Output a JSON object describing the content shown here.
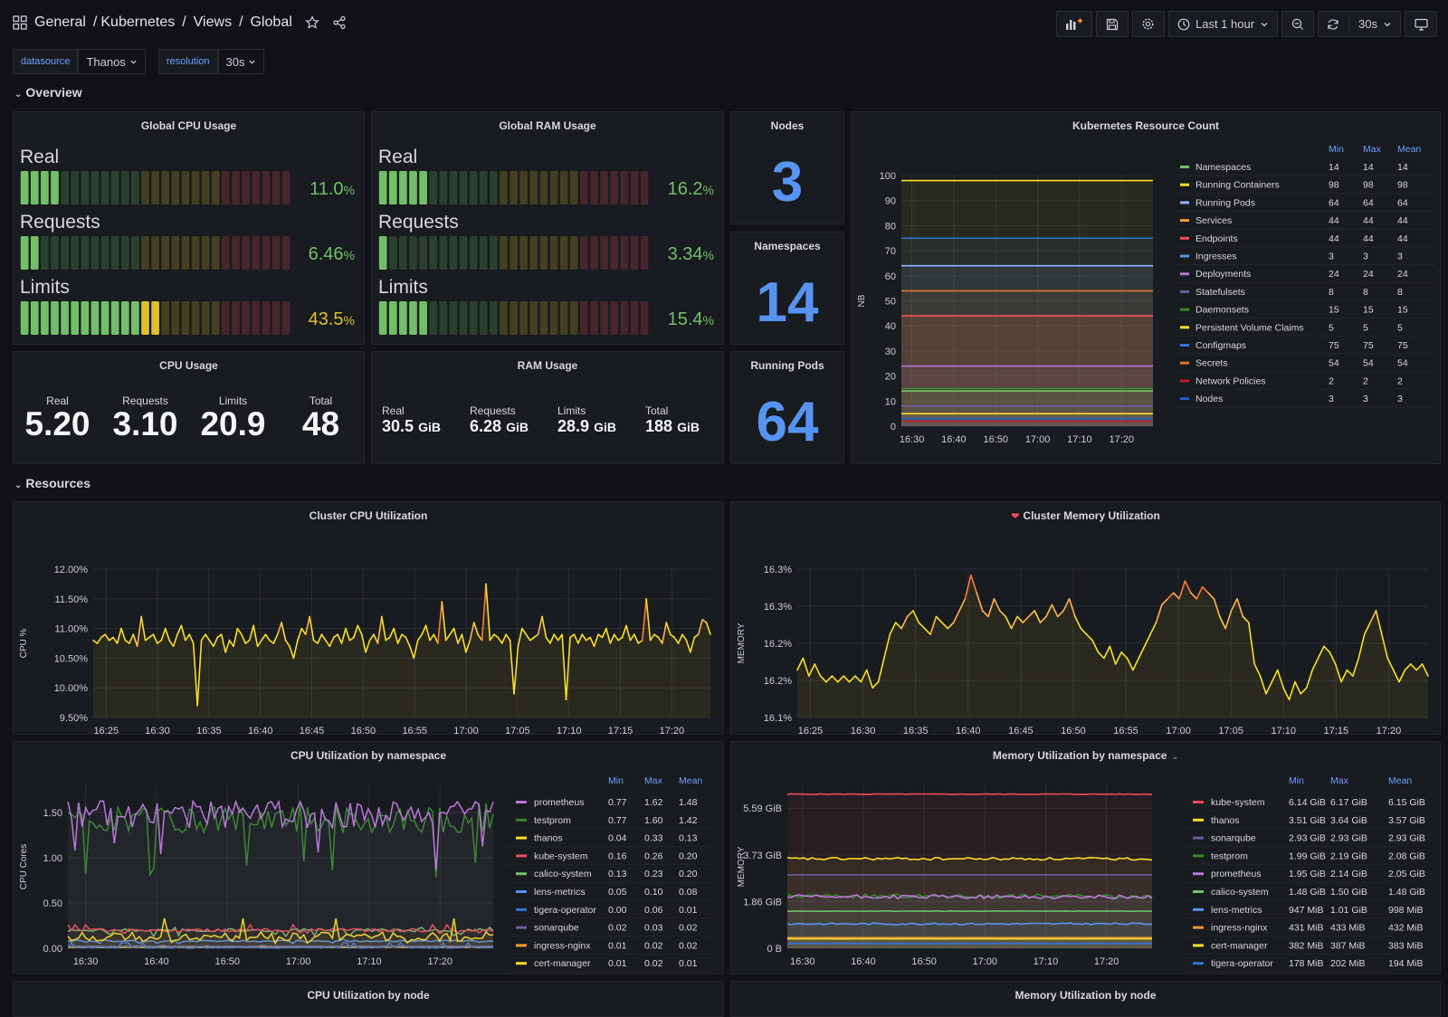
{
  "breadcrumb": {
    "root": "General",
    "sep1": "/",
    "folder": "Kubernetes",
    "sep2": "/",
    "sub": "Views",
    "sep3": "/",
    "page": "Global"
  },
  "toolbar": {
    "time_range": "Last 1 hour",
    "refresh": "30s"
  },
  "variables": [
    {
      "label": "datasource",
      "value": "Thanos"
    },
    {
      "label": "resolution",
      "value": "30s"
    }
  ],
  "rows": {
    "overview": "Overview",
    "resources": "Resources"
  },
  "colors": {
    "blue": "#5794f2",
    "green": "#73bf69",
    "yellow": "#fade2a",
    "orange": "#ff9830",
    "red": "#f2495c",
    "purple": "#b877d9"
  },
  "global_cpu": {
    "title": "Global CPU Usage",
    "rows": [
      {
        "label": "Real",
        "num": "11.0",
        "unit": "%",
        "fraction": 0.11,
        "color": "#73bf69"
      },
      {
        "label": "Requests",
        "num": "6.46",
        "unit": "%",
        "fraction": 0.0646,
        "color": "#73bf69"
      },
      {
        "label": "Limits",
        "num": "43.5",
        "unit": "%",
        "fraction": 0.435,
        "color": "#e0c02a"
      }
    ]
  },
  "global_ram": {
    "title": "Global RAM Usage",
    "rows": [
      {
        "label": "Real",
        "num": "16.2",
        "unit": "%",
        "fraction": 0.162,
        "color": "#73bf69"
      },
      {
        "label": "Requests",
        "num": "3.34",
        "unit": "%",
        "fraction": 0.0334,
        "color": "#73bf69"
      },
      {
        "label": "Limits",
        "num": "15.4",
        "unit": "%",
        "fraction": 0.154,
        "color": "#73bf69"
      }
    ]
  },
  "nodes": {
    "title": "Nodes",
    "value": "3"
  },
  "namespaces": {
    "title": "Namespaces",
    "value": "14"
  },
  "running_pods": {
    "title": "Running Pods",
    "value": "64"
  },
  "cpu_usage": {
    "title": "CPU Usage",
    "cells": [
      {
        "label": "Real",
        "value": "5.20"
      },
      {
        "label": "Requests",
        "value": "3.10"
      },
      {
        "label": "Limits",
        "value": "20.9"
      },
      {
        "label": "Total",
        "value": "48"
      }
    ]
  },
  "ram_usage": {
    "title": "RAM Usage",
    "cells": [
      {
        "label": "Real",
        "value": "30.5",
        "unit": "GiB"
      },
      {
        "label": "Requests",
        "value": "6.28",
        "unit": "GiB"
      },
      {
        "label": "Limits",
        "value": "28.9",
        "unit": "GiB"
      },
      {
        "label": "Total",
        "value": "188",
        "unit": "GiB"
      }
    ]
  },
  "panels": {
    "k8s_count_title": "Kubernetes Resource Count",
    "cluster_cpu_title": "Cluster CPU Utilization",
    "cluster_mem_title": "Cluster Memory Utilization",
    "cpu_ns_title": "CPU Utilization by namespace",
    "mem_ns_title": "Memory Utilization by namespace",
    "cpu_node_title": "CPU Utilization by node",
    "mem_node_title": "Memory Utilization by node"
  },
  "legend_headers": {
    "min": "Min",
    "max": "Max",
    "mean": "Mean"
  },
  "chart_data": [
    {
      "type": "line",
      "title": "Kubernetes Resource Count",
      "ylabel": "NB",
      "ylim": [
        0,
        100
      ],
      "yticks": [
        "0",
        "10",
        "20",
        "30",
        "40",
        "50",
        "60",
        "70",
        "80",
        "90",
        "100"
      ],
      "xticks": [
        "16:30",
        "16:40",
        "16:50",
        "17:00",
        "17:10",
        "17:20"
      ],
      "series": [
        {
          "name": "Namespaces",
          "value": 14,
          "min": "14",
          "max": "14",
          "mean": "14",
          "color": "#73bf69"
        },
        {
          "name": "Running Containers",
          "value": 98,
          "min": "98",
          "max": "98",
          "mean": "98",
          "color": "#fade2a"
        },
        {
          "name": "Running Pods",
          "value": 64,
          "min": "64",
          "max": "64",
          "mean": "64",
          "color": "#8ab8ff"
        },
        {
          "name": "Services",
          "value": 44,
          "min": "44",
          "max": "44",
          "mean": "44",
          "color": "#ff9830"
        },
        {
          "name": "Endpoints",
          "value": 44,
          "min": "44",
          "max": "44",
          "mean": "44",
          "color": "#f2495c"
        },
        {
          "name": "Ingresses",
          "value": 3,
          "min": "3",
          "max": "3",
          "mean": "3",
          "color": "#5794f2"
        },
        {
          "name": "Deployments",
          "value": 24,
          "min": "24",
          "max": "24",
          "mean": "24",
          "color": "#b877d9"
        },
        {
          "name": "Statefulsets",
          "value": 8,
          "min": "8",
          "max": "8",
          "mean": "8",
          "color": "#705da0"
        },
        {
          "name": "Daemonsets",
          "value": 15,
          "min": "15",
          "max": "15",
          "mean": "15",
          "color": "#37872d"
        },
        {
          "name": "Persistent Volume Claims",
          "value": 5,
          "min": "5",
          "max": "5",
          "mean": "5",
          "color": "#fade2a"
        },
        {
          "name": "Configmaps",
          "value": 75,
          "min": "75",
          "max": "75",
          "mean": "75",
          "color": "#3274d9"
        },
        {
          "name": "Secrets",
          "value": 54,
          "min": "54",
          "max": "54",
          "mean": "54",
          "color": "#e0752d"
        },
        {
          "name": "Network Policies",
          "value": 2,
          "min": "2",
          "max": "2",
          "mean": "2",
          "color": "#c4162a"
        },
        {
          "name": "Nodes",
          "value": 3,
          "min": "3",
          "max": "3",
          "mean": "3",
          "color": "#1f60c4"
        }
      ]
    },
    {
      "type": "line",
      "title": "Cluster CPU Utilization",
      "ylabel": "CPU %",
      "ylim": [
        9.5,
        12.0
      ],
      "yticks": [
        "9.50%",
        "10.00%",
        "10.50%",
        "11.00%",
        "11.50%",
        "12.00%"
      ],
      "xticks": [
        "16:25",
        "16:30",
        "16:35",
        "16:40",
        "16:45",
        "16:50",
        "16:55",
        "17:00",
        "17:05",
        "17:10",
        "17:15",
        "17:20"
      ],
      "series": [
        {
          "values": [
            10.8,
            10.75,
            10.85,
            10.9,
            10.8,
            10.85,
            10.75,
            11.0,
            10.8,
            10.75,
            10.9,
            10.7,
            11.2,
            10.8,
            10.85,
            10.9,
            10.75,
            10.8,
            11.0,
            10.8,
            10.7,
            10.9,
            11.05,
            10.8,
            10.9,
            10.75,
            9.7,
            10.8,
            10.9,
            10.8,
            10.7,
            10.85,
            10.9,
            10.6,
            10.8,
            10.7,
            11.0,
            10.9,
            10.75,
            10.8,
            11.05,
            10.7,
            10.8,
            10.9,
            10.8,
            10.75,
            10.9,
            11.1,
            10.8,
            10.7,
            10.5,
            10.8,
            11.0,
            10.9,
            11.2,
            10.8,
            10.75,
            10.9,
            10.8,
            10.7,
            10.85,
            10.9,
            10.75,
            11.0,
            10.8,
            10.85,
            11.05,
            10.9,
            10.6,
            10.8,
            10.9,
            10.75,
            11.2,
            10.8,
            10.85,
            11.0,
            10.75,
            10.9,
            10.85,
            10.7,
            10.5,
            10.8,
            10.9,
            11.05,
            10.8,
            10.9,
            10.75,
            11.45,
            10.8,
            10.9,
            11.0,
            10.75,
            10.9,
            10.6,
            10.8,
            11.1,
            10.9,
            10.8,
            11.75,
            10.8,
            10.9,
            10.85,
            10.75,
            10.9,
            10.8,
            9.9,
            10.7,
            11.0,
            10.9,
            10.8,
            10.85,
            10.9,
            11.2,
            10.85,
            10.75,
            10.9,
            10.8,
            10.9,
            9.8,
            10.85,
            10.9,
            10.75,
            10.9,
            10.8,
            10.85,
            10.7,
            10.9,
            10.85,
            11.0,
            10.75,
            10.9,
            10.8,
            10.85,
            11.05,
            10.8,
            10.9,
            10.75,
            10.8,
            11.5,
            10.8,
            10.9,
            10.85,
            10.75,
            11.1,
            10.9,
            10.85,
            10.75,
            10.9,
            10.8,
            10.6,
            10.85,
            10.9,
            11.15,
            11.1,
            10.9
          ],
          "color": "#fade2a"
        }
      ]
    },
    {
      "type": "line",
      "title": "Cluster Memory Utilization",
      "ylabel": "MEMORY",
      "ylim": [
        16.1,
        16.35
      ],
      "yticks": [
        "16.1%",
        "16.2%",
        "16.2%",
        "16.3%",
        "16.3%"
      ],
      "xticks": [
        "16:25",
        "16:30",
        "16:35",
        "16:40",
        "16:45",
        "16:50",
        "16:55",
        "17:00",
        "17:05",
        "17:10",
        "17:15",
        "17:20"
      ],
      "series": [
        {
          "values": [
            16.18,
            16.2,
            16.17,
            16.19,
            16.17,
            16.16,
            16.17,
            16.16,
            16.17,
            16.16,
            16.17,
            16.16,
            16.18,
            16.15,
            16.16,
            16.2,
            16.24,
            16.26,
            16.25,
            16.27,
            16.28,
            16.26,
            16.25,
            16.24,
            16.27,
            16.26,
            16.25,
            16.26,
            16.28,
            16.3,
            16.34,
            16.31,
            16.28,
            16.27,
            16.3,
            16.28,
            16.27,
            16.25,
            16.27,
            16.26,
            16.27,
            16.28,
            16.26,
            16.27,
            16.29,
            16.27,
            16.28,
            16.3,
            16.27,
            16.25,
            16.24,
            16.23,
            16.21,
            16.2,
            16.22,
            16.19,
            16.21,
            16.2,
            16.18,
            16.2,
            16.22,
            16.24,
            16.26,
            16.29,
            16.3,
            16.31,
            16.3,
            16.33,
            16.31,
            16.3,
            16.32,
            16.31,
            16.3,
            16.27,
            16.25,
            16.28,
            16.3,
            16.27,
            16.26,
            16.19,
            16.17,
            16.14,
            16.16,
            16.18,
            16.15,
            16.13,
            16.16,
            16.14,
            16.15,
            16.18,
            16.2,
            16.22,
            16.21,
            16.19,
            16.16,
            16.18,
            16.17,
            16.2,
            16.24,
            16.26,
            16.28,
            16.24,
            16.2,
            16.18,
            16.16,
            16.18,
            16.19,
            16.18,
            16.19,
            16.17
          ],
          "color": "#fade2a"
        }
      ]
    },
    {
      "type": "line",
      "title": "CPU Utilization by namespace",
      "ylabel": "CPU Cores",
      "ylim": [
        0,
        1.8
      ],
      "yticks": [
        "0.00",
        "0.50",
        "1.00",
        "1.50"
      ],
      "xticks": [
        "16:30",
        "16:40",
        "16:50",
        "17:00",
        "17:10",
        "17:20"
      ],
      "series": [
        {
          "name": "prometheus",
          "min": "0.77",
          "max": "1.62",
          "mean": "1.48",
          "color": "#b877d9"
        },
        {
          "name": "testprom",
          "min": "0.77",
          "max": "1.60",
          "mean": "1.42",
          "color": "#37872d"
        },
        {
          "name": "thanos",
          "min": "0.04",
          "max": "0.33",
          "mean": "0.13",
          "color": "#fade2a"
        },
        {
          "name": "kube-system",
          "min": "0.16",
          "max": "0.26",
          "mean": "0.20",
          "color": "#f2495c"
        },
        {
          "name": "calico-system",
          "min": "0.13",
          "max": "0.23",
          "mean": "0.20",
          "color": "#73bf69"
        },
        {
          "name": "lens-metrics",
          "min": "0.05",
          "max": "0.10",
          "mean": "0.08",
          "color": "#5794f2"
        },
        {
          "name": "tigera-operator",
          "min": "0.00",
          "max": "0.06",
          "mean": "0.01",
          "color": "#3274d9"
        },
        {
          "name": "sonarqube",
          "min": "0.02",
          "max": "0.03",
          "mean": "0.02",
          "color": "#705da0"
        },
        {
          "name": "ingress-nginx",
          "min": "0.01",
          "max": "0.02",
          "mean": "0.02",
          "color": "#ff9830"
        },
        {
          "name": "cert-manager",
          "min": "0.01",
          "max": "0.02",
          "mean": "0.01",
          "color": "#fade2a"
        }
      ]
    },
    {
      "type": "area",
      "title": "Memory Utilization by namespace",
      "ylabel": "MEMORY",
      "yticks": [
        "0 B",
        "1.86 GiB",
        "3.73 GiB",
        "5.59 GiB"
      ],
      "xticks": [
        "16:30",
        "16:40",
        "16:50",
        "17:00",
        "17:10",
        "17:20"
      ],
      "series": [
        {
          "name": "kube-system",
          "min": "6.14 GiB",
          "max": "6.17 GiB",
          "mean": "6.15 GiB",
          "color": "#f2495c"
        },
        {
          "name": "thanos",
          "min": "3.51 GiB",
          "max": "3.64 GiB",
          "mean": "3.57 GiB",
          "color": "#fade2a"
        },
        {
          "name": "sonarqube",
          "min": "2.93 GiB",
          "max": "2.93 GiB",
          "mean": "2.93 GiB",
          "color": "#705da0"
        },
        {
          "name": "testprom",
          "min": "1.99 GiB",
          "max": "2.19 GiB",
          "mean": "2.08 GiB",
          "color": "#37872d"
        },
        {
          "name": "prometheus",
          "min": "1.95 GiB",
          "max": "2.14 GiB",
          "mean": "2.05 GiB",
          "color": "#b877d9"
        },
        {
          "name": "calico-system",
          "min": "1.48 GiB",
          "max": "1.50 GiB",
          "mean": "1.48 GiB",
          "color": "#73bf69"
        },
        {
          "name": "lens-metrics",
          "min": "947 MiB",
          "max": "1.01 GiB",
          "mean": "998 MiB",
          "color": "#5794f2"
        },
        {
          "name": "ingress-nginx",
          "min": "431 MiB",
          "max": "433 MiB",
          "mean": "432 MiB",
          "color": "#ff9830"
        },
        {
          "name": "cert-manager",
          "min": "382 MiB",
          "max": "387 MiB",
          "mean": "383 MiB",
          "color": "#fade2a"
        },
        {
          "name": "tigera-operator",
          "min": "178 MiB",
          "max": "202 MiB",
          "mean": "194 MiB",
          "color": "#3274d9"
        }
      ]
    }
  ]
}
